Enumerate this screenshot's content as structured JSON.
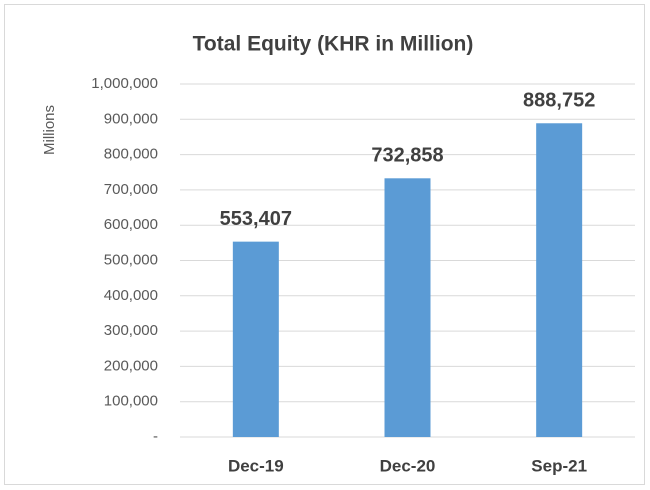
{
  "chart_data": {
    "type": "bar",
    "title": "Total Equity (KHR in Million)",
    "y_axis_label": "Millions",
    "categories": [
      "Dec-19",
      "Dec-20",
      "Sep-21"
    ],
    "values": [
      553407,
      732858,
      888752
    ],
    "value_labels": [
      "553,407",
      "732,858",
      "888,752"
    ],
    "color": "#5b9bd5",
    "ylim": [
      0,
      1000000
    ],
    "yticks": [
      {
        "value": 0,
        "label": "-"
      },
      {
        "value": 100000,
        "label": "100,000"
      },
      {
        "value": 200000,
        "label": "200,000"
      },
      {
        "value": 300000,
        "label": "300,000"
      },
      {
        "value": 400000,
        "label": "400,000"
      },
      {
        "value": 500000,
        "label": "500,000"
      },
      {
        "value": 600000,
        "label": "600,000"
      },
      {
        "value": 700000,
        "label": "700,000"
      },
      {
        "value": 800000,
        "label": "800,000"
      },
      {
        "value": 900000,
        "label": "900,000"
      },
      {
        "value": 1000000,
        "label": "1,000,000"
      }
    ],
    "grid": true
  }
}
